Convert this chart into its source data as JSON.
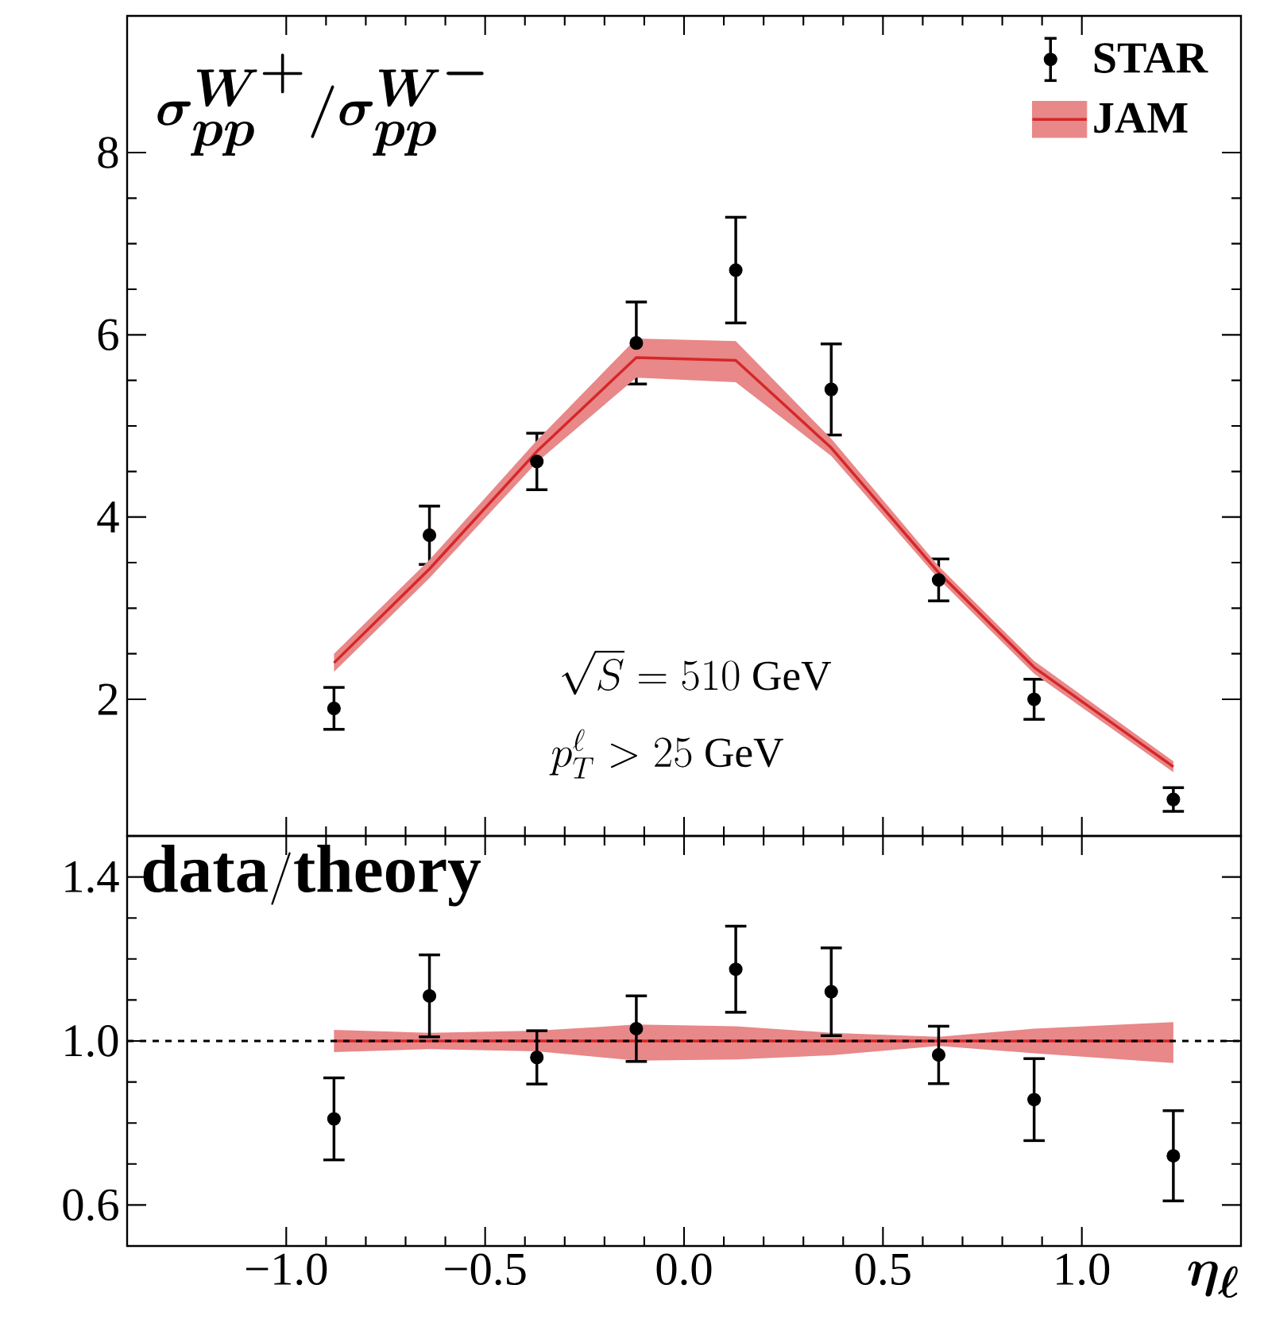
{
  "chart_data": [
    {
      "type": "scatter",
      "title": "\\boldsymbol{\\sigma_{pp}^{W^+}/\\sigma_{pp}^{W^-}}",
      "annotations": [
        "\\sqrt{S}=510\\ \\mathrm{GeV}",
        "p_T^{\\ell}>25\\ \\mathrm{GeV}"
      ],
      "xlim": [
        -1.4,
        1.4
      ],
      "xticks": [
        -1,
        -0.5,
        0,
        0.5,
        1
      ],
      "ylim": [
        0.5,
        9.5
      ],
      "yticks": [
        2,
        4,
        6,
        8
      ],
      "tick_labels": "y",
      "legend": "top right",
      "series": [
        {
          "name": "STAR",
          "marker": "circle",
          "color": "#000000",
          "x": [
            -0.88,
            -0.64,
            -0.37,
            -0.12,
            0.13,
            0.37,
            0.64,
            0.88,
            1.23
          ],
          "values": [
            1.9,
            3.8,
            4.61,
            5.91,
            6.71,
            5.4,
            3.31,
            2.0,
            0.9
          ],
          "errors": [
            0.23,
            0.32,
            0.31,
            0.45,
            0.58,
            0.5,
            0.23,
            0.22,
            0.13
          ]
        },
        {
          "name": "JAM",
          "type": "line",
          "color": "#d62728",
          "x": [
            -0.88,
            -0.64,
            -0.37,
            -0.12,
            0.13,
            0.37,
            0.64,
            0.88,
            1.23
          ],
          "values": [
            2.4,
            3.43,
            4.72,
            5.75,
            5.72,
            4.76,
            3.39,
            2.35,
            1.26
          ],
          "lower": [
            2.3,
            3.33,
            4.6,
            5.53,
            5.48,
            4.67,
            3.32,
            2.28,
            1.2
          ],
          "upper": [
            2.5,
            3.53,
            4.84,
            5.96,
            5.93,
            4.86,
            3.46,
            2.42,
            1.32
          ]
        }
      ]
    },
    {
      "type": "scatter",
      "annotations": [
        "\\mathbf{data/theory}"
      ],
      "xlabel": "\\boldsymbol{\\eta_{\\ell}}",
      "xlim": [
        -1.4,
        1.4
      ],
      "xticks": [
        {
          "value": -1,
          "label": "−1.0"
        },
        {
          "value": -0.5,
          "label": "−0.5"
        },
        {
          "value": 0,
          "label": "0.0"
        },
        0.5,
        {
          "value": 1,
          "label": "1.0"
        }
      ],
      "ylim": [
        0.5,
        1.5
      ],
      "yticks": [
        0.6,
        {
          "value": 1,
          "label": "1.0"
        },
        1.4
      ],
      "ref_lines": [
        {
          "axis": "y",
          "value": 1,
          "color": "#000000",
          "line_style": "dashed"
        }
      ],
      "series": [
        {
          "type": "line",
          "color": "#d62728",
          "x": [
            -0.88,
            -0.64,
            -0.37,
            -0.12,
            0.13,
            0.37,
            0.64,
            0.88,
            1.23
          ],
          "values": [
            1,
            1,
            1,
            1,
            1,
            1,
            1,
            1,
            1
          ],
          "lower": [
            0.973,
            0.98,
            0.975,
            0.952,
            0.955,
            0.965,
            0.988,
            0.97,
            0.946
          ],
          "upper": [
            1.027,
            1.02,
            1.025,
            1.04,
            1.036,
            1.02,
            1.01,
            1.03,
            1.046
          ]
        },
        {
          "marker": "circle",
          "color": "#000000",
          "x": [
            -0.88,
            -0.64,
            -0.37,
            -0.12,
            0.13,
            0.37,
            0.64,
            0.88,
            1.23
          ],
          "values": [
            0.81,
            1.11,
            0.96,
            1.03,
            1.175,
            1.12,
            0.966,
            0.857,
            0.72
          ],
          "errors": [
            0.1,
            0.1,
            0.065,
            0.08,
            0.105,
            0.107,
            0.07,
            0.1,
            0.11
          ]
        }
      ]
    }
  ]
}
